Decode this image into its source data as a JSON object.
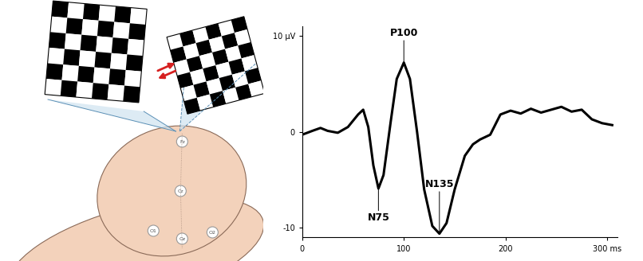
{
  "chart_data": {
    "type": "line",
    "x": [
      0,
      10,
      18,
      25,
      35,
      45,
      55,
      60,
      65,
      70,
      75,
      80,
      87,
      93,
      100,
      106,
      113,
      120,
      128,
      135,
      142,
      150,
      160,
      168,
      175,
      185,
      195,
      205,
      215,
      225,
      235,
      245,
      255,
      265,
      275,
      285,
      295,
      305
    ],
    "values": [
      -0.3,
      0.1,
      0.4,
      0.1,
      -0.1,
      0.5,
      1.8,
      2.3,
      0.5,
      -3.5,
      -5.9,
      -4.5,
      1.0,
      5.5,
      7.2,
      5.5,
      0.0,
      -6.0,
      -9.8,
      -10.6,
      -9.5,
      -6.0,
      -2.5,
      -1.3,
      -0.8,
      -0.3,
      1.8,
      2.2,
      1.9,
      2.4,
      2.0,
      2.3,
      2.6,
      2.1,
      2.3,
      1.3,
      0.9,
      0.7
    ],
    "color": "#000000",
    "xlim": [
      0,
      310
    ],
    "xticks": [
      0,
      100,
      200,
      {
        "value": 300,
        "label": "300 ms"
      }
    ],
    "ylim": [
      -11,
      11
    ],
    "yticks": [
      -10,
      0,
      {
        "value": 10,
        "label": "10 μV"
      }
    ],
    "annotations": [
      {
        "text": "N75",
        "x": 75,
        "y": -5.9
      },
      {
        "text": "P100",
        "x": 100,
        "y": 7.2
      },
      {
        "text": "N135",
        "x": 135,
        "y": -10.6
      }
    ]
  },
  "diagram": {
    "electrodes": [
      "Fz",
      "Cz",
      "O1",
      "Oz",
      "O2"
    ]
  }
}
